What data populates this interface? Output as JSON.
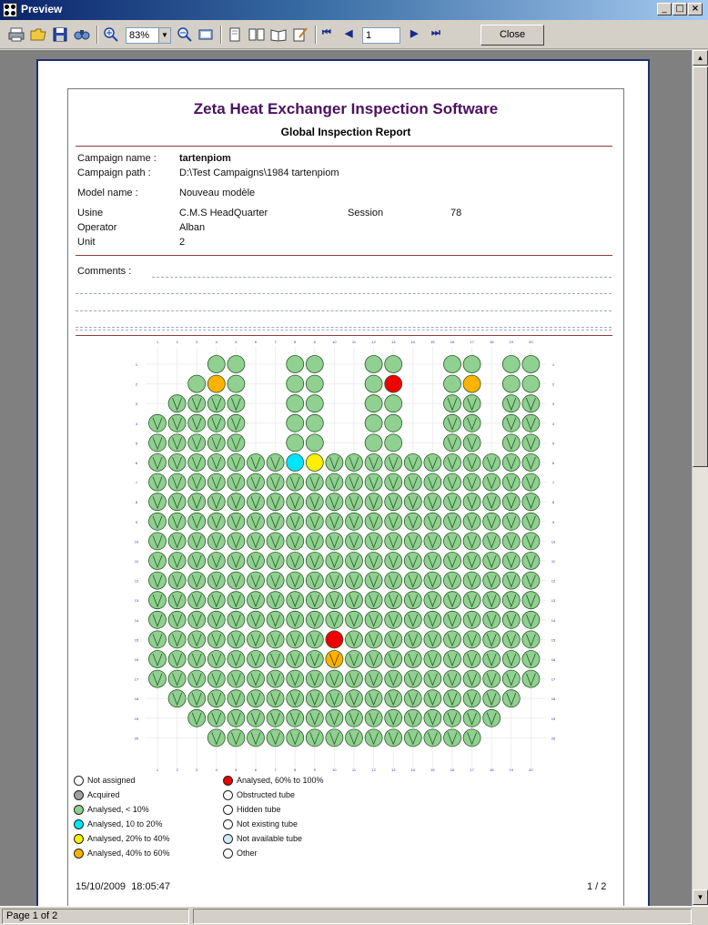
{
  "window": {
    "title": "Preview"
  },
  "toolbar": {
    "zoom_value": "83%",
    "page_value": "1",
    "close_label": "Close",
    "nav_first": "⏮",
    "nav_prev": "◀",
    "nav_next": "▶",
    "nav_last": "⏭"
  },
  "report": {
    "title": "Zeta Heat Exchanger Inspection Software",
    "subtitle": "Global Inspection Report",
    "campaign_name_label": "Campaign name :",
    "campaign_name_value": "tartenpiom",
    "campaign_path_label": "Campaign path :",
    "campaign_path_value": "D:\\Test Campaigns\\1984 tartenpiom",
    "model_name_label": "Model name :",
    "model_name_value": "Nouveau modèle",
    "usine_label": "Usine",
    "usine_value": "C.M.S HeadQuarter",
    "session_label": "Session",
    "session_value": "78",
    "operator_label": "Operator",
    "operator_value": "Alban",
    "unit_label": "Unit",
    "unit_value": "2",
    "comments_label": "Comments :",
    "footer_date": "15/10/2009",
    "footer_time": "18:05:47",
    "footer_page": "1 / 2"
  },
  "tube_map": {
    "colors": {
      "analysed_lt10": "#90d090",
      "analysed_10_20": "#00e5ff",
      "analysed_20_40": "#ffee00",
      "analysed_40_60": "#ffb300",
      "analysed_60_100": "#ee0000",
      "grid_label": "#3030c0"
    }
  },
  "legend": [
    {
      "label": "Not assigned",
      "color": "#ffffff"
    },
    {
      "label": "Acquired",
      "color": "#a0a0a0"
    },
    {
      "label": "Analysed, < 10%",
      "color": "#90d090"
    },
    {
      "label": "Analysed, 10 to 20%",
      "color": "#00e5ff"
    },
    {
      "label": "Analysed, 20% to 40%",
      "color": "#ffee00"
    },
    {
      "label": "Analysed, 40% to 60%",
      "color": "#ffb300"
    },
    {
      "label": "Analysed, 60% to 100%",
      "color": "#ee0000"
    },
    {
      "label": "Obstructed tube",
      "color": "#ffffff"
    },
    {
      "label": "Hidden tube",
      "color": "#ffffff"
    },
    {
      "label": "Not existing tube",
      "color": "#ffffff"
    },
    {
      "label": "Not available tube",
      "color": "#cfe8f5"
    },
    {
      "label": "Other",
      "color": "#ffffff"
    }
  ],
  "status": {
    "page_text": "Page 1 of 2"
  }
}
